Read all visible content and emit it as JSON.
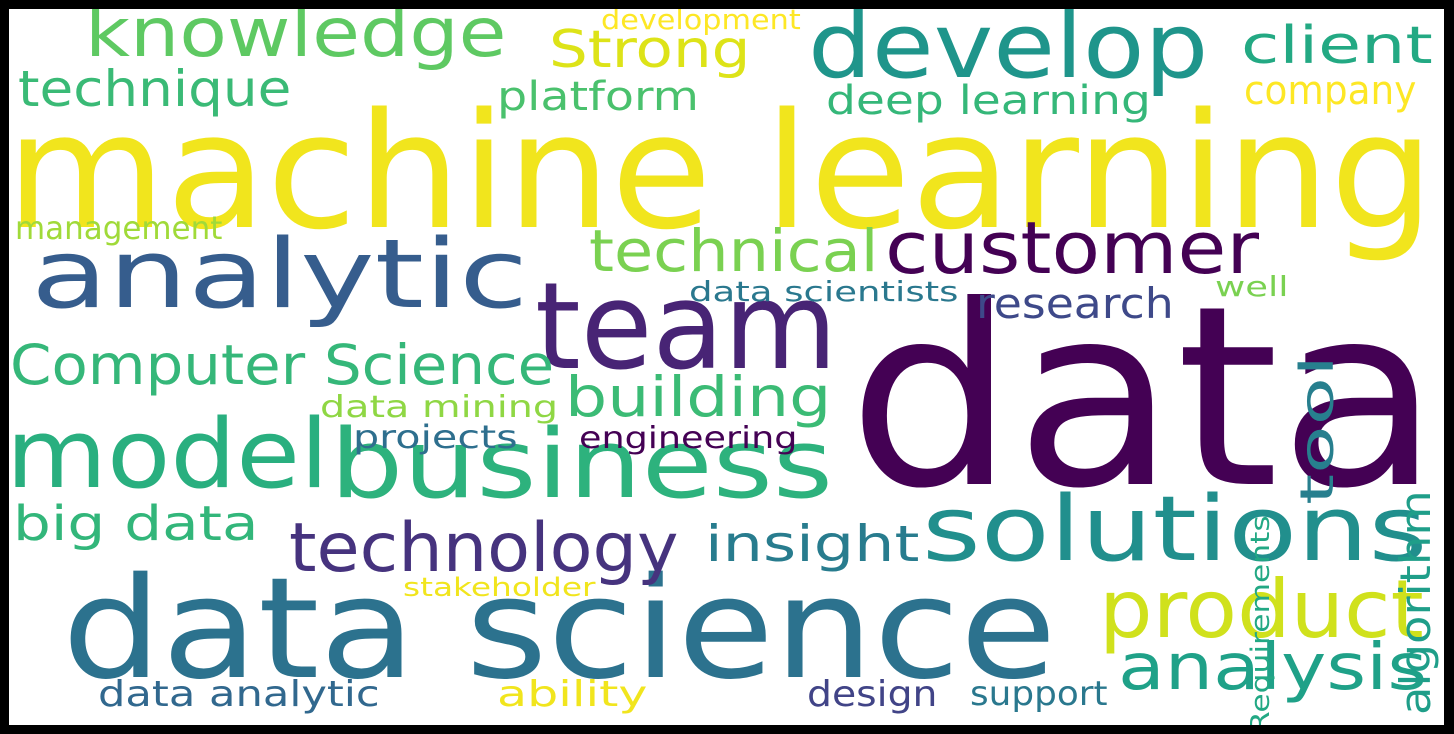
{
  "words": [
    {
      "key": "data",
      "text": "data",
      "color": "#440154"
    },
    {
      "key": "machine_learning",
      "text": "machine learning",
      "color": "#f1e51d"
    },
    {
      "key": "data_science",
      "text": "data science",
      "color": "#2c728e"
    },
    {
      "key": "team",
      "text": "team",
      "color": "#482475"
    },
    {
      "key": "business",
      "text": "business",
      "color": "#2db27d"
    },
    {
      "key": "analytic",
      "text": "analytic",
      "color": "#365d8d"
    },
    {
      "key": "model",
      "text": "model",
      "color": "#29af7f"
    },
    {
      "key": "develop",
      "text": "develop",
      "color": "#1f958b"
    },
    {
      "key": "solutions",
      "text": "solutions",
      "color": "#218f8d"
    },
    {
      "key": "customer",
      "text": "customer",
      "color": "#440154"
    },
    {
      "key": "product",
      "text": "product",
      "color": "#d0e11c"
    },
    {
      "key": "technology",
      "text": "technology",
      "color": "#46337e"
    },
    {
      "key": "knowledge",
      "text": "knowledge",
      "color": "#5ec962"
    },
    {
      "key": "analysis",
      "text": "analysis",
      "color": "#1fa188"
    },
    {
      "key": "technical",
      "text": "technical",
      "color": "#7ad151"
    },
    {
      "key": "computer_science",
      "text": "Computer Science",
      "color": "#35b779"
    },
    {
      "key": "building",
      "text": "building",
      "color": "#3bbb75"
    },
    {
      "key": "strong",
      "text": "Strong",
      "color": "#dde318"
    },
    {
      "key": "client",
      "text": "client",
      "color": "#23a983"
    },
    {
      "key": "insight",
      "text": "insight",
      "color": "#287c8e"
    },
    {
      "key": "technique",
      "text": "technique",
      "color": "#3aba76"
    },
    {
      "key": "big_data",
      "text": "big data",
      "color": "#32b67a"
    },
    {
      "key": "tool",
      "text": "tool",
      "color": "#277f8e"
    },
    {
      "key": "research",
      "text": "research",
      "color": "#3e4989"
    },
    {
      "key": "algorithm",
      "text": "algorithm",
      "color": "#1f9e89"
    },
    {
      "key": "deep_learning",
      "text": "deep learning",
      "color": "#35b779"
    },
    {
      "key": "platform",
      "text": "platform",
      "color": "#4ac16d"
    },
    {
      "key": "company",
      "text": "company",
      "color": "#fde725"
    },
    {
      "key": "data_analytic",
      "text": "data analytic",
      "color": "#31688e"
    },
    {
      "key": "ability",
      "text": "ability",
      "color": "#f1e51d"
    },
    {
      "key": "design",
      "text": "design",
      "color": "#414487"
    },
    {
      "key": "support",
      "text": "support",
      "color": "#2a788e"
    },
    {
      "key": "projects",
      "text": "projects",
      "color": "#2e6f8e"
    },
    {
      "key": "engineering",
      "text": "engineering",
      "color": "#440154"
    },
    {
      "key": "data_mining",
      "text": "data mining",
      "color": "#8fd744"
    },
    {
      "key": "data_scientists",
      "text": "data scientists",
      "color": "#2a788e"
    },
    {
      "key": "management",
      "text": "management",
      "color": "#a0da39"
    },
    {
      "key": "requirements",
      "text": "Requirements",
      "color": "#22a884"
    },
    {
      "key": "well",
      "text": "well",
      "color": "#7ad151"
    },
    {
      "key": "stakeholder",
      "text": "stakeholder",
      "color": "#f1e51d"
    },
    {
      "key": "development",
      "text": "development",
      "color": "#fde725"
    }
  ]
}
